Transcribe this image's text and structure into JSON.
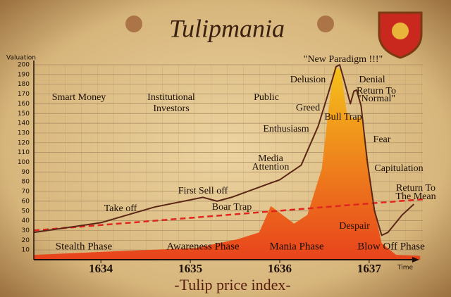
{
  "chart_data": {
    "type": "line",
    "title": "Tulipmania",
    "ylabel": "Valuation",
    "xlabel": "-Tulip price index-",
    "time_label": "Time",
    "xlim": [
      1633.25,
      1637.6
    ],
    "xticks": [
      1634,
      1635,
      1636,
      1637
    ],
    "ylim": [
      0,
      200
    ],
    "yticks": [
      10,
      20,
      30,
      40,
      50,
      60,
      70,
      80,
      90,
      100,
      110,
      120,
      130,
      140,
      150,
      160,
      170,
      180,
      190,
      200
    ],
    "grid": true,
    "series": [
      {
        "style": "area",
        "color": "#f5c21b",
        "color2": "#e8431c",
        "x": [
          1633.25,
          1634,
          1635.06,
          1635.53,
          1635.77,
          1635.9,
          1636.16,
          1636.31,
          1636.47,
          1636.55,
          1636.61,
          1636.68,
          1636.75,
          1636.83,
          1636.91,
          1636.98,
          1637.06,
          1637.14,
          1637.3,
          1637.57
        ],
        "values": [
          5,
          8,
          12,
          21,
          28,
          55,
          37,
          46,
          93,
          158,
          198,
          195,
          151,
          144,
          147,
          108,
          50,
          17,
          5,
          4
        ]
      },
      {
        "style": "dashed",
        "color": "#e0261e",
        "x": [
          1633.25,
          1637.6
        ],
        "values": [
          30,
          62
        ]
      },
      {
        "style": "line",
        "color": "#5a2616",
        "x": [
          1633.25,
          1634,
          1634.6,
          1635.14,
          1635.3,
          1635.46,
          1636,
          1636.24,
          1636.43,
          1636.55,
          1636.63,
          1636.67,
          1636.72,
          1636.79,
          1636.83,
          1636.86,
          1636.91,
          1636.98,
          1637.06,
          1637.14,
          1637.21,
          1637.37,
          1637.5
        ],
        "values": [
          28,
          38,
          54,
          64,
          60,
          64,
          82,
          97,
          137,
          173,
          198,
          200,
          184,
          160,
          173,
          174,
          158,
          100,
          50,
          25,
          28,
          46,
          57
        ]
      }
    ],
    "annotations": [
      "Smart Money",
      "Institutional",
      "Investors",
      "Public",
      "Delusion",
      "\"New Paradigm !!!\"",
      "Denial",
      "Return To",
      "\"Normal\"",
      "Greed",
      "Bull Trap",
      "Enthusiasm",
      "Media",
      "Attention",
      "First Sell off",
      "Take off",
      "Boar Trap",
      "Fear",
      "Capitulation",
      "Return To",
      "The Mean",
      "Despair"
    ],
    "phases": [
      "Stealth Phase",
      "Awareness Phase",
      "Mania Phase",
      "Blow Off Phase"
    ]
  }
}
